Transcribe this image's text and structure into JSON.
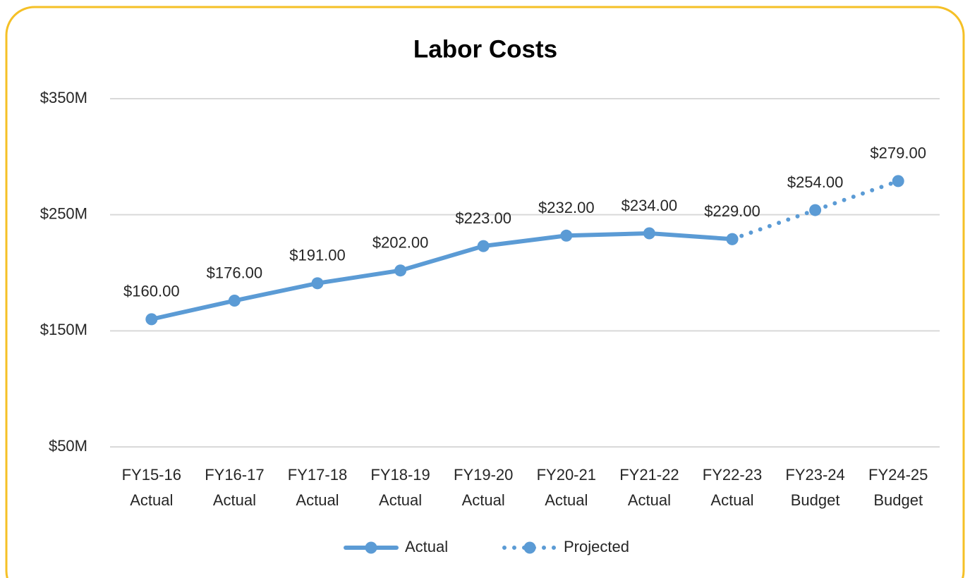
{
  "chart_data": {
    "type": "line",
    "title": "Labor Costs",
    "categories": [
      [
        "FY15-16",
        "Actual"
      ],
      [
        "FY16-17",
        "Actual"
      ],
      [
        "FY17-18",
        "Actual"
      ],
      [
        "FY18-19",
        "Actual"
      ],
      [
        "FY19-20",
        "Actual"
      ],
      [
        "FY20-21",
        "Actual"
      ],
      [
        "FY21-22",
        "Actual"
      ],
      [
        "FY22-23",
        "Actual"
      ],
      [
        "FY23-24",
        "Budget"
      ],
      [
        "FY24-25",
        "Budget"
      ]
    ],
    "series": [
      {
        "name": "Actual",
        "color": "#5b9bd5",
        "dash": "solid",
        "values": [
          160,
          176,
          191,
          202,
          223,
          232,
          234,
          229,
          null,
          null
        ],
        "value_labels": [
          "$160.00",
          "$176.00",
          "$191.00",
          "$202.00",
          "$223.00",
          "$232.00",
          "$234.00",
          "$229.00",
          null,
          null
        ]
      },
      {
        "name": "Projected",
        "color": "#5b9bd5",
        "dash": "dotted",
        "values": [
          null,
          null,
          null,
          null,
          null,
          null,
          null,
          229,
          254,
          279
        ],
        "value_labels": [
          null,
          null,
          null,
          null,
          null,
          null,
          null,
          null,
          "$254.00",
          "$279.00"
        ]
      }
    ],
    "ylim": [
      50,
      350
    ],
    "yticks": [
      {
        "value": 50,
        "label": "$50M"
      },
      {
        "value": 150,
        "label": "$150M"
      },
      {
        "value": 250,
        "label": "$250M"
      },
      {
        "value": 350,
        "label": "$350M"
      }
    ],
    "grid": true,
    "legend": "bottom"
  }
}
